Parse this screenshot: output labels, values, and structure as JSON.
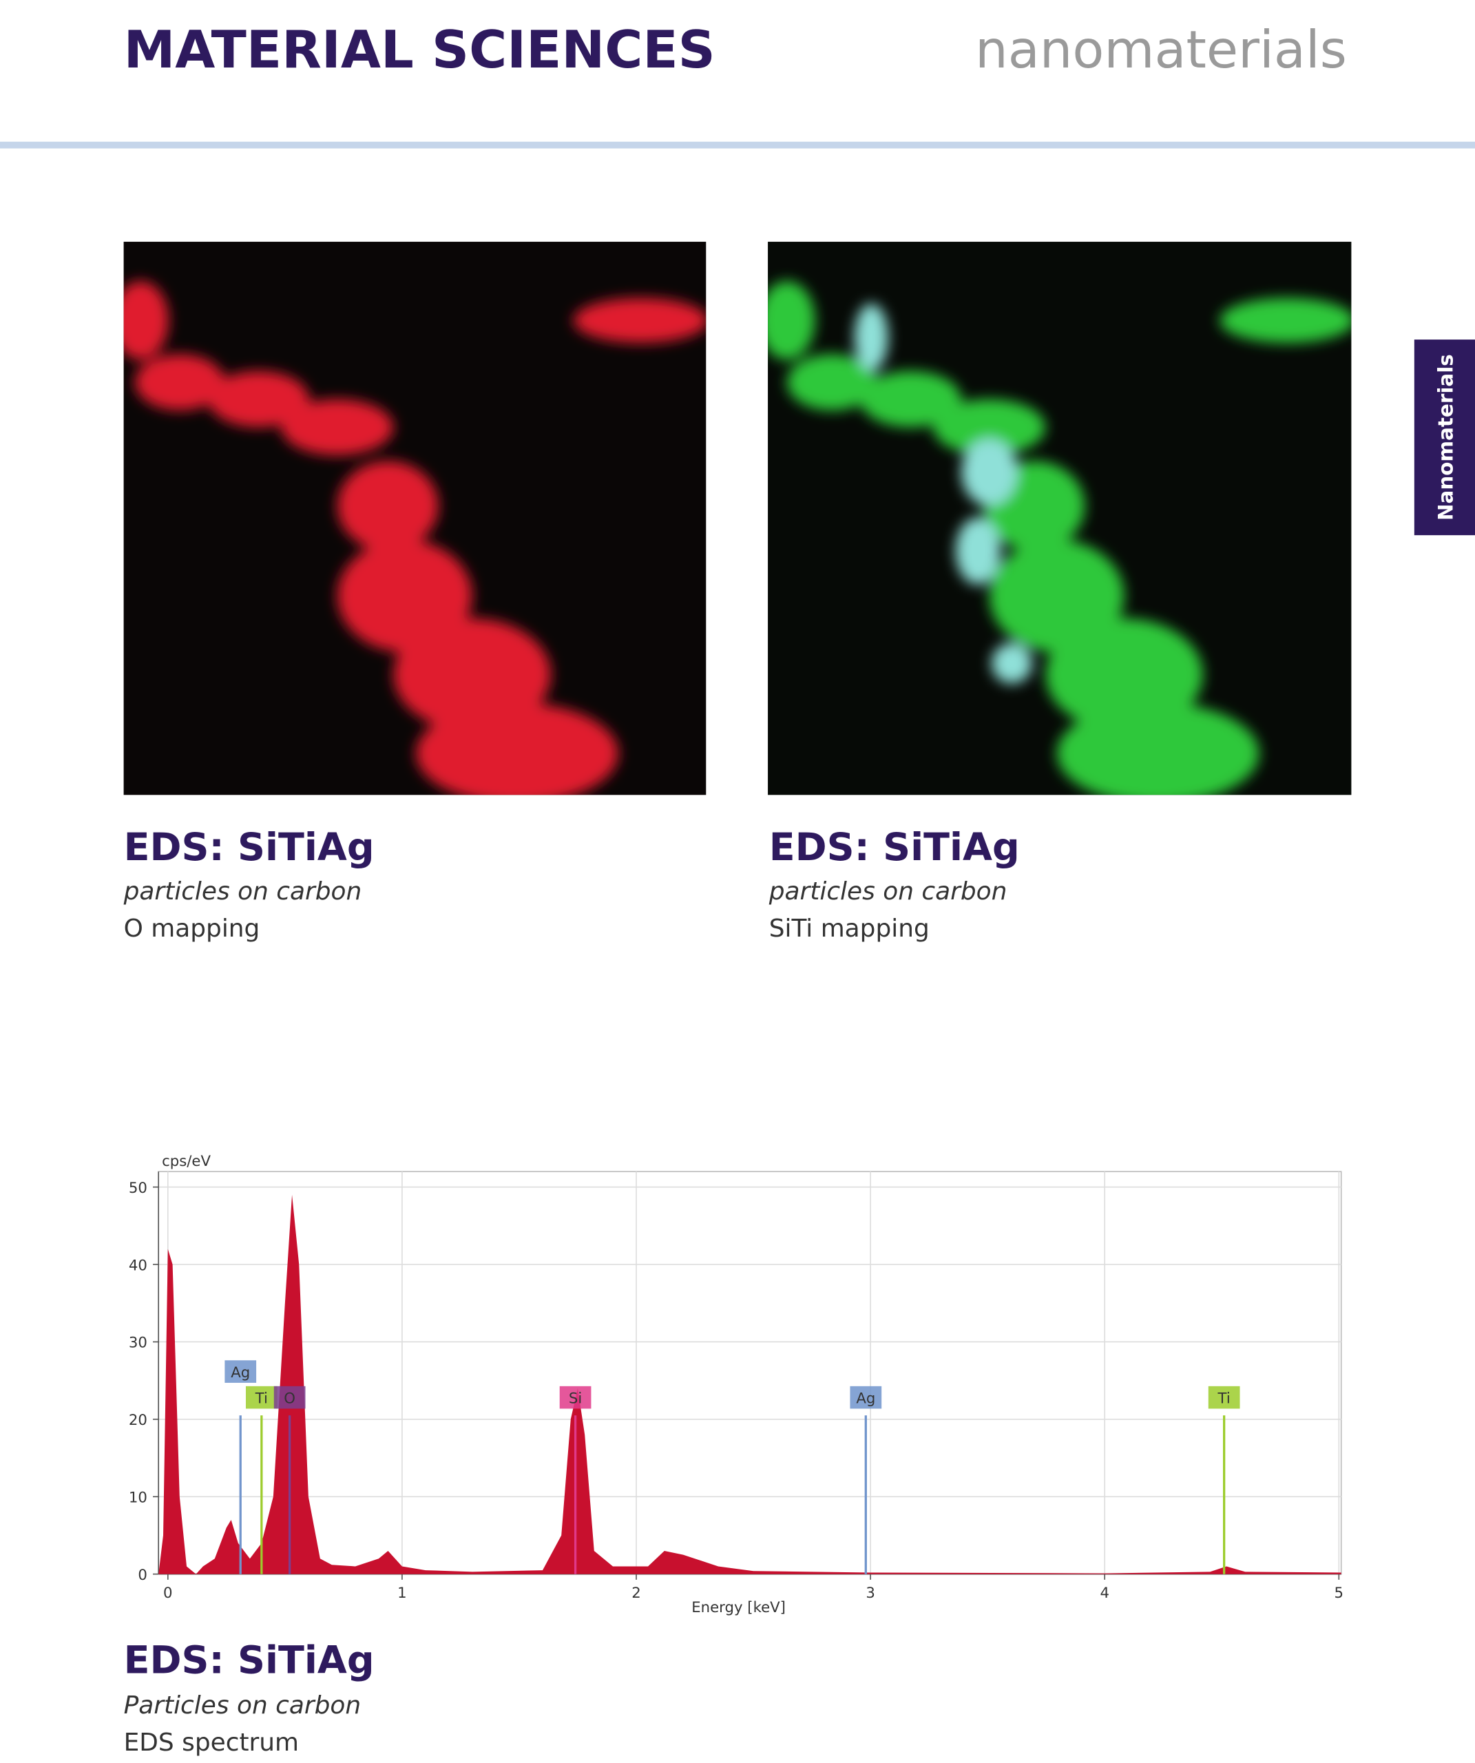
{
  "header": {
    "title": "MATERIAL SCIENCES",
    "section": "nanomaterials"
  },
  "side_tab": "Nanomaterials",
  "figures": [
    {
      "title": "EDS: SiTiAg",
      "subtitle": "particles on carbon",
      "caption": "O mapping"
    },
    {
      "title": "EDS: SiTiAg",
      "subtitle": "particles on carbon",
      "caption": "SiTi mapping"
    }
  ],
  "chart_data": {
    "type": "area",
    "y_label": "cps/eV",
    "x_label": "Energy [keV]",
    "x": [
      -0.04,
      -0.02,
      0,
      0.02,
      0.05,
      0.08,
      0.12,
      0.15,
      0.2,
      0.25,
      0.27,
      0.3,
      0.35,
      0.4,
      0.45,
      0.5,
      0.53,
      0.56,
      0.6,
      0.65,
      0.7,
      0.8,
      0.9,
      0.94,
      1.0,
      1.1,
      1.3,
      1.6,
      1.68,
      1.72,
      1.75,
      1.78,
      1.82,
      1.9,
      2.05,
      2.12,
      2.2,
      2.35,
      2.5,
      3,
      4,
      4.45,
      4.52,
      4.6,
      5.01
    ],
    "values": [
      0,
      5,
      42,
      40,
      10,
      1,
      0,
      1,
      2,
      6,
      7,
      4,
      2,
      4,
      10,
      35,
      49,
      40,
      10,
      2,
      1.2,
      1,
      2,
      3,
      1,
      0.5,
      0.3,
      0.5,
      5,
      20,
      24,
      18,
      3,
      1,
      1,
      3,
      2.5,
      1,
      0.4,
      0.2,
      0.1,
      0.3,
      1,
      0.3,
      0.2
    ],
    "color": "#c8102e",
    "xlim": [
      -0.04,
      5.01
    ],
    "ylim": [
      0,
      52
    ],
    "xticks": [
      0,
      1,
      2,
      3,
      4,
      5
    ],
    "yticks": [
      0,
      10,
      20,
      30,
      40,
      50
    ],
    "grid": true,
    "peaks": [
      {
        "label": "Ag",
        "energy": 0.31,
        "height": 20.5,
        "color": "#7094cc"
      },
      {
        "label": "Ti",
        "energy": 0.4,
        "height": 20.5,
        "color": "#9ccc2c"
      },
      {
        "label": "O",
        "energy": 0.52,
        "height": 20.5,
        "color": "#7b3f8f"
      },
      {
        "label": "Si",
        "energy": 1.74,
        "height": 20.5,
        "color": "#e0398a"
      },
      {
        "label": "Ag",
        "energy": 2.98,
        "height": 20.5,
        "color": "#7094cc"
      },
      {
        "label": "Ti",
        "energy": 4.51,
        "height": 20.5,
        "color": "#9ccc2c"
      }
    ]
  },
  "spectrum_caption": {
    "title": "EDS: SiTiAg",
    "subtitle": "Particles on carbon",
    "caption": "EDS spectrum"
  }
}
